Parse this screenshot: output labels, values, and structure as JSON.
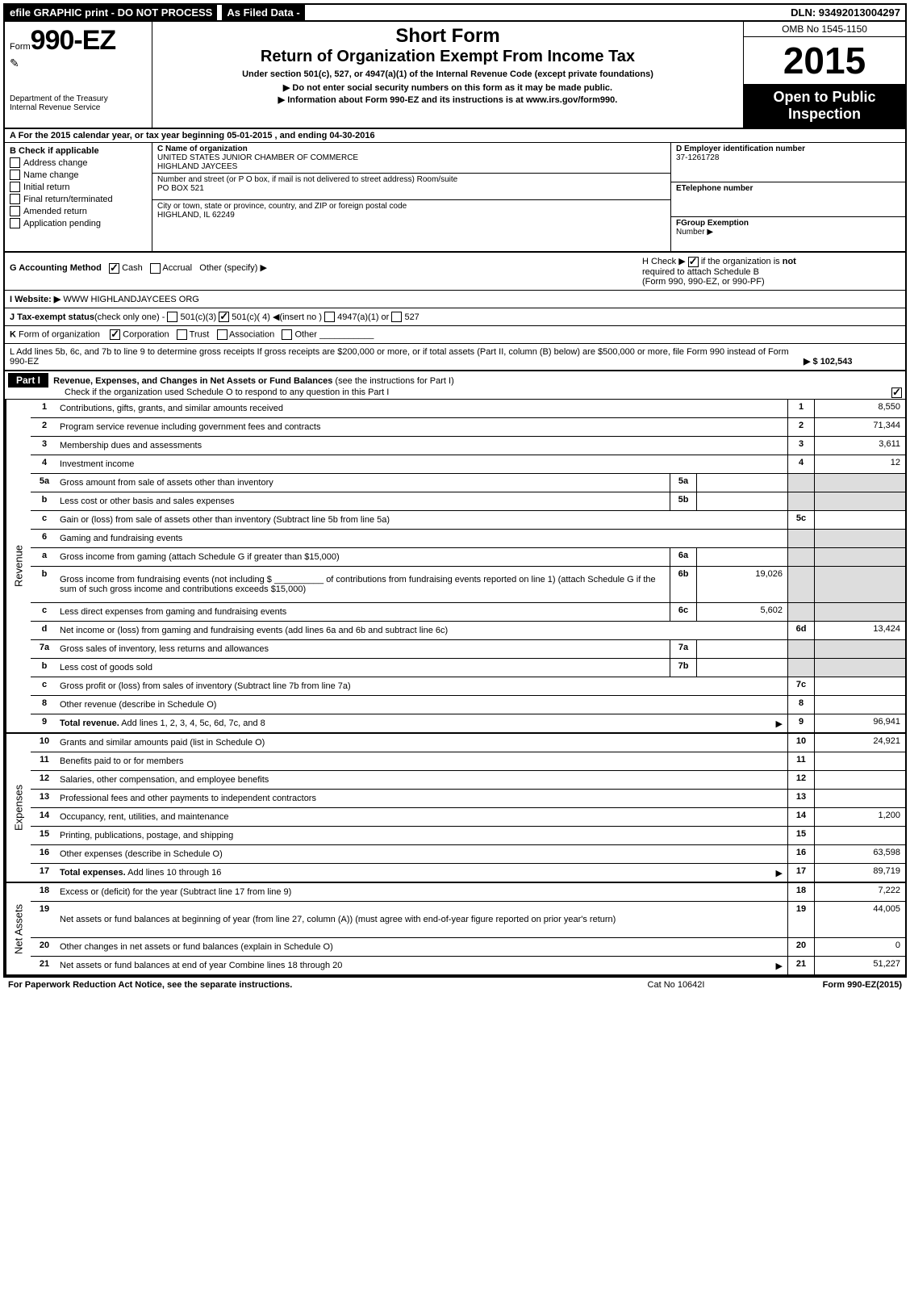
{
  "topbar": {
    "efile": "efile GRAPHIC print - DO NOT PROCESS",
    "asfiled": "As Filed Data -",
    "dln": "DLN: 93492013004297"
  },
  "header": {
    "formPrefix": "Form",
    "formNumber": "990-EZ",
    "dept1": "Department of the Treasury",
    "dept2": "Internal Revenue Service",
    "shortForm": "Short Form",
    "title": "Return of Organization Exempt From Income Tax",
    "under": "Under section 501(c), 527, or 4947(a)(1) of the Internal Revenue Code (except private foundations)",
    "noSSN": "▶ Do not enter social security numbers on this form as it may be made public.",
    "infoLine": "▶ Information about Form 990-EZ and its instructions is at ",
    "infoLink": "www.irs.gov/form990",
    "infoSuffix": ".",
    "omb": "OMB No 1545-1150",
    "year": "2015",
    "open1": "Open to Public",
    "open2": "Inspection"
  },
  "rowA": "A  For the 2015 calendar year, or tax year beginning 05-01-2015            , and ending 04-30-2016",
  "colB": {
    "title": "B  Check if applicable",
    "items": [
      "Address change",
      "Name change",
      "Initial return",
      "Final return/terminated",
      "Amended return",
      "Application pending"
    ]
  },
  "colC": {
    "nameLabel": "C Name of organization",
    "name1": "UNITED STATES JUNIOR CHAMBER OF COMMERCE",
    "name2": "HIGHLAND JAYCEES",
    "addrLabel": "Number and street (or P O box, if mail is not delivered to street address) Room/suite",
    "addr": "PO BOX 521",
    "cityLabel": "City or town, state or province, country, and ZIP or foreign postal code",
    "city": "HIGHLAND, IL  62249"
  },
  "colDEF": {
    "dLabel": "D Employer identification number",
    "d": "37-1261728",
    "eLabel": "ETelephone number",
    "fLabel": "FGroup Exemption",
    "fLabel2": "Number   ▶"
  },
  "g": {
    "label": "G Accounting Method",
    "cash": "Cash",
    "accrual": "Accrual",
    "other": "Other (specify) ▶"
  },
  "h": {
    "text1": "H   Check ▶",
    "text2": "if the organization is ",
    "not": "not",
    "text3": "required to attach Schedule B",
    "text4": "(Form 990, 990-EZ, or 990-PF)"
  },
  "i": {
    "label": "I Website: ▶",
    "value": "WWW HIGHLANDJAYCEES ORG"
  },
  "j": "J Tax-exempt status(check only one) -    501(c)(3)    501(c)( 4) ◀(insert no )    4947(a)(1) or    527",
  "k": "K Form of organization        Corporation     Trust     Association     Other",
  "l": {
    "text": "L Add lines 5b, 6c, and 7b to line 9 to determine gross receipts  If gross receipts are $200,000 or more, or if total assets (Part II, column (B) below) are $500,000 or more, file Form 990 instead of Form 990-EZ",
    "amount": "▶ $ 102,543"
  },
  "part1": {
    "label": "Part I",
    "title": "Revenue, Expenses, and Changes in Net Assets or Fund Balances",
    "sub": "(see the instructions for Part I)",
    "check": "Check if the organization used Schedule O to respond to any question in this Part I"
  },
  "sections": [
    {
      "label": "Revenue",
      "lines": [
        {
          "n": "1",
          "d": "Contributions, gifts, grants, and similar amounts received",
          "rn": "1",
          "rv": "8,550"
        },
        {
          "n": "2",
          "d": "Program service revenue including government fees and contracts",
          "rn": "2",
          "rv": "71,344"
        },
        {
          "n": "3",
          "d": "Membership dues and assessments",
          "rn": "3",
          "rv": "3,611"
        },
        {
          "n": "4",
          "d": "Investment income",
          "rn": "4",
          "rv": "12"
        },
        {
          "n": "5a",
          "d": "Gross amount from sale of assets other than inventory",
          "mb": "5a",
          "shadeR": true
        },
        {
          "n": "b",
          "d": "Less  cost or other basis and sales expenses",
          "mb": "5b",
          "shadeR": true
        },
        {
          "n": "c",
          "d": "Gain or (loss) from sale of assets other than inventory (Subtract line 5b from line 5a)",
          "rn": "5c"
        },
        {
          "n": "6",
          "d": "Gaming and fundraising events",
          "shadeR": true,
          "shadeRN": true
        },
        {
          "n": "a",
          "d": "Gross income from gaming (attach Schedule G if greater than $15,000)",
          "mb": "6a",
          "shadeR": true
        },
        {
          "n": "b",
          "d": "Gross income from fundraising events (not including $ __________ of contributions from fundraising events reported on line 1) (attach Schedule G if the sum of such gross income and contributions exceeds $15,000)",
          "mb": "6b",
          "mv": "19,026",
          "shadeR": true,
          "tall": true
        },
        {
          "n": "c",
          "d": "Less  direct expenses from gaming and fundraising events",
          "mb": "6c",
          "mv": "5,602",
          "shadeR": true
        },
        {
          "n": "d",
          "d": "Net income or (loss) from gaming and fundraising events (add lines 6a and 6b and subtract line 6c)",
          "rn": "6d",
          "rv": "13,424"
        },
        {
          "n": "7a",
          "d": "Gross sales of inventory, less returns and allowances",
          "mb": "7a",
          "shadeR": true
        },
        {
          "n": "b",
          "d": "Less  cost of goods sold",
          "mb": "7b",
          "shadeR": true
        },
        {
          "n": "c",
          "d": "Gross profit or (loss) from sales of inventory (Subtract line 7b from line 7a)",
          "rn": "7c"
        },
        {
          "n": "8",
          "d": "Other revenue (describe in Schedule O)",
          "rn": "8"
        },
        {
          "n": "9",
          "d": "Total revenue. Add lines 1, 2, 3, 4, 5c, 6d, 7c, and 8",
          "rn": "9",
          "rv": "96,941",
          "bold": true,
          "arrow": true
        }
      ]
    },
    {
      "label": "Expenses",
      "lines": [
        {
          "n": "10",
          "d": "Grants and similar amounts paid (list in Schedule O)",
          "rn": "10",
          "rv": "24,921"
        },
        {
          "n": "11",
          "d": "Benefits paid to or for members",
          "rn": "11"
        },
        {
          "n": "12",
          "d": "Salaries, other compensation, and employee benefits",
          "rn": "12"
        },
        {
          "n": "13",
          "d": "Professional fees and other payments to independent contractors",
          "rn": "13"
        },
        {
          "n": "14",
          "d": "Occupancy, rent, utilities, and maintenance",
          "rn": "14",
          "rv": "1,200"
        },
        {
          "n": "15",
          "d": "Printing, publications, postage, and shipping",
          "rn": "15"
        },
        {
          "n": "16",
          "d": "Other expenses (describe in Schedule O)",
          "rn": "16",
          "rv": "63,598"
        },
        {
          "n": "17",
          "d": "Total expenses. Add lines 10 through 16",
          "rn": "17",
          "rv": "89,719",
          "bold": true,
          "arrow": true
        }
      ]
    },
    {
      "label": "Net Assets",
      "lines": [
        {
          "n": "18",
          "d": "Excess or (deficit) for the year (Subtract line 17 from line 9)",
          "rn": "18",
          "rv": "7,222"
        },
        {
          "n": "19",
          "d": "Net assets or fund balances at beginning of year (from line 27, column (A)) (must agree with end-of-year figure reported on prior year's return)",
          "rn": "19",
          "rv": "44,005",
          "tall": true
        },
        {
          "n": "20",
          "d": "Other changes in net assets or fund balances (explain in Schedule O)",
          "rn": "20",
          "rv": "0"
        },
        {
          "n": "21",
          "d": "Net assets or fund balances at end of year  Combine lines 18 through 20",
          "rn": "21",
          "rv": "51,227",
          "arrow": true
        }
      ]
    }
  ],
  "footer": {
    "left": "For Paperwork Reduction Act Notice, see the separate instructions.",
    "mid": "Cat No 10642I",
    "right": "Form 990-EZ (2015)"
  }
}
